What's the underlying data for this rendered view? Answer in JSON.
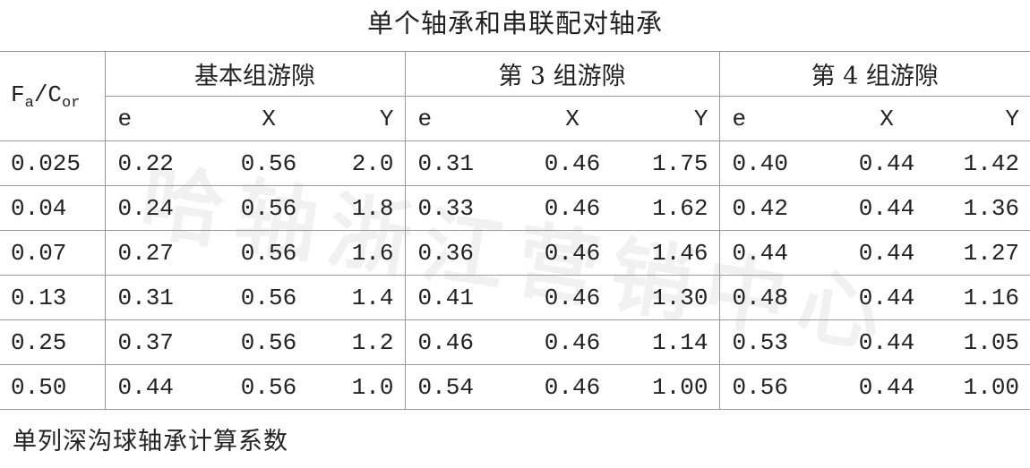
{
  "title": "单个轴承和串联配对轴承",
  "table": {
    "corner": [
      "F",
      "a",
      "/C",
      "or"
    ],
    "groups": [
      "基本组游隙",
      "第 3 组游隙",
      "第 4 组游隙"
    ],
    "subheaders": [
      "e",
      "X",
      "Y",
      "e",
      "X",
      "Y",
      "e",
      "X",
      "Y"
    ],
    "rows": [
      [
        "0.025",
        "0.22",
        "0.56",
        "2.0",
        "0.31",
        "0.46",
        "1.75",
        "0.40",
        "0.44",
        "1.42"
      ],
      [
        "0.04",
        "0.24",
        "0.56",
        "1.8",
        "0.33",
        "0.46",
        "1.62",
        "0.42",
        "0.44",
        "1.36"
      ],
      [
        "0.07",
        "0.27",
        "0.56",
        "1.6",
        "0.36",
        "0.46",
        "1.46",
        "0.44",
        "0.44",
        "1.27"
      ],
      [
        "0.13",
        "0.31",
        "0.56",
        "1.4",
        "0.41",
        "0.46",
        "1.30",
        "0.48",
        "0.44",
        "1.16"
      ],
      [
        "0.25",
        "0.37",
        "0.56",
        "1.2",
        "0.46",
        "0.46",
        "1.14",
        "0.53",
        "0.44",
        "1.05"
      ],
      [
        "0.50",
        "0.44",
        "0.56",
        "1.0",
        "0.54",
        "0.46",
        "1.00",
        "0.56",
        "0.44",
        "1.00"
      ]
    ]
  },
  "caption": "单列深沟球轴承计算系数",
  "watermark": "哈轴浙江营销中心"
}
